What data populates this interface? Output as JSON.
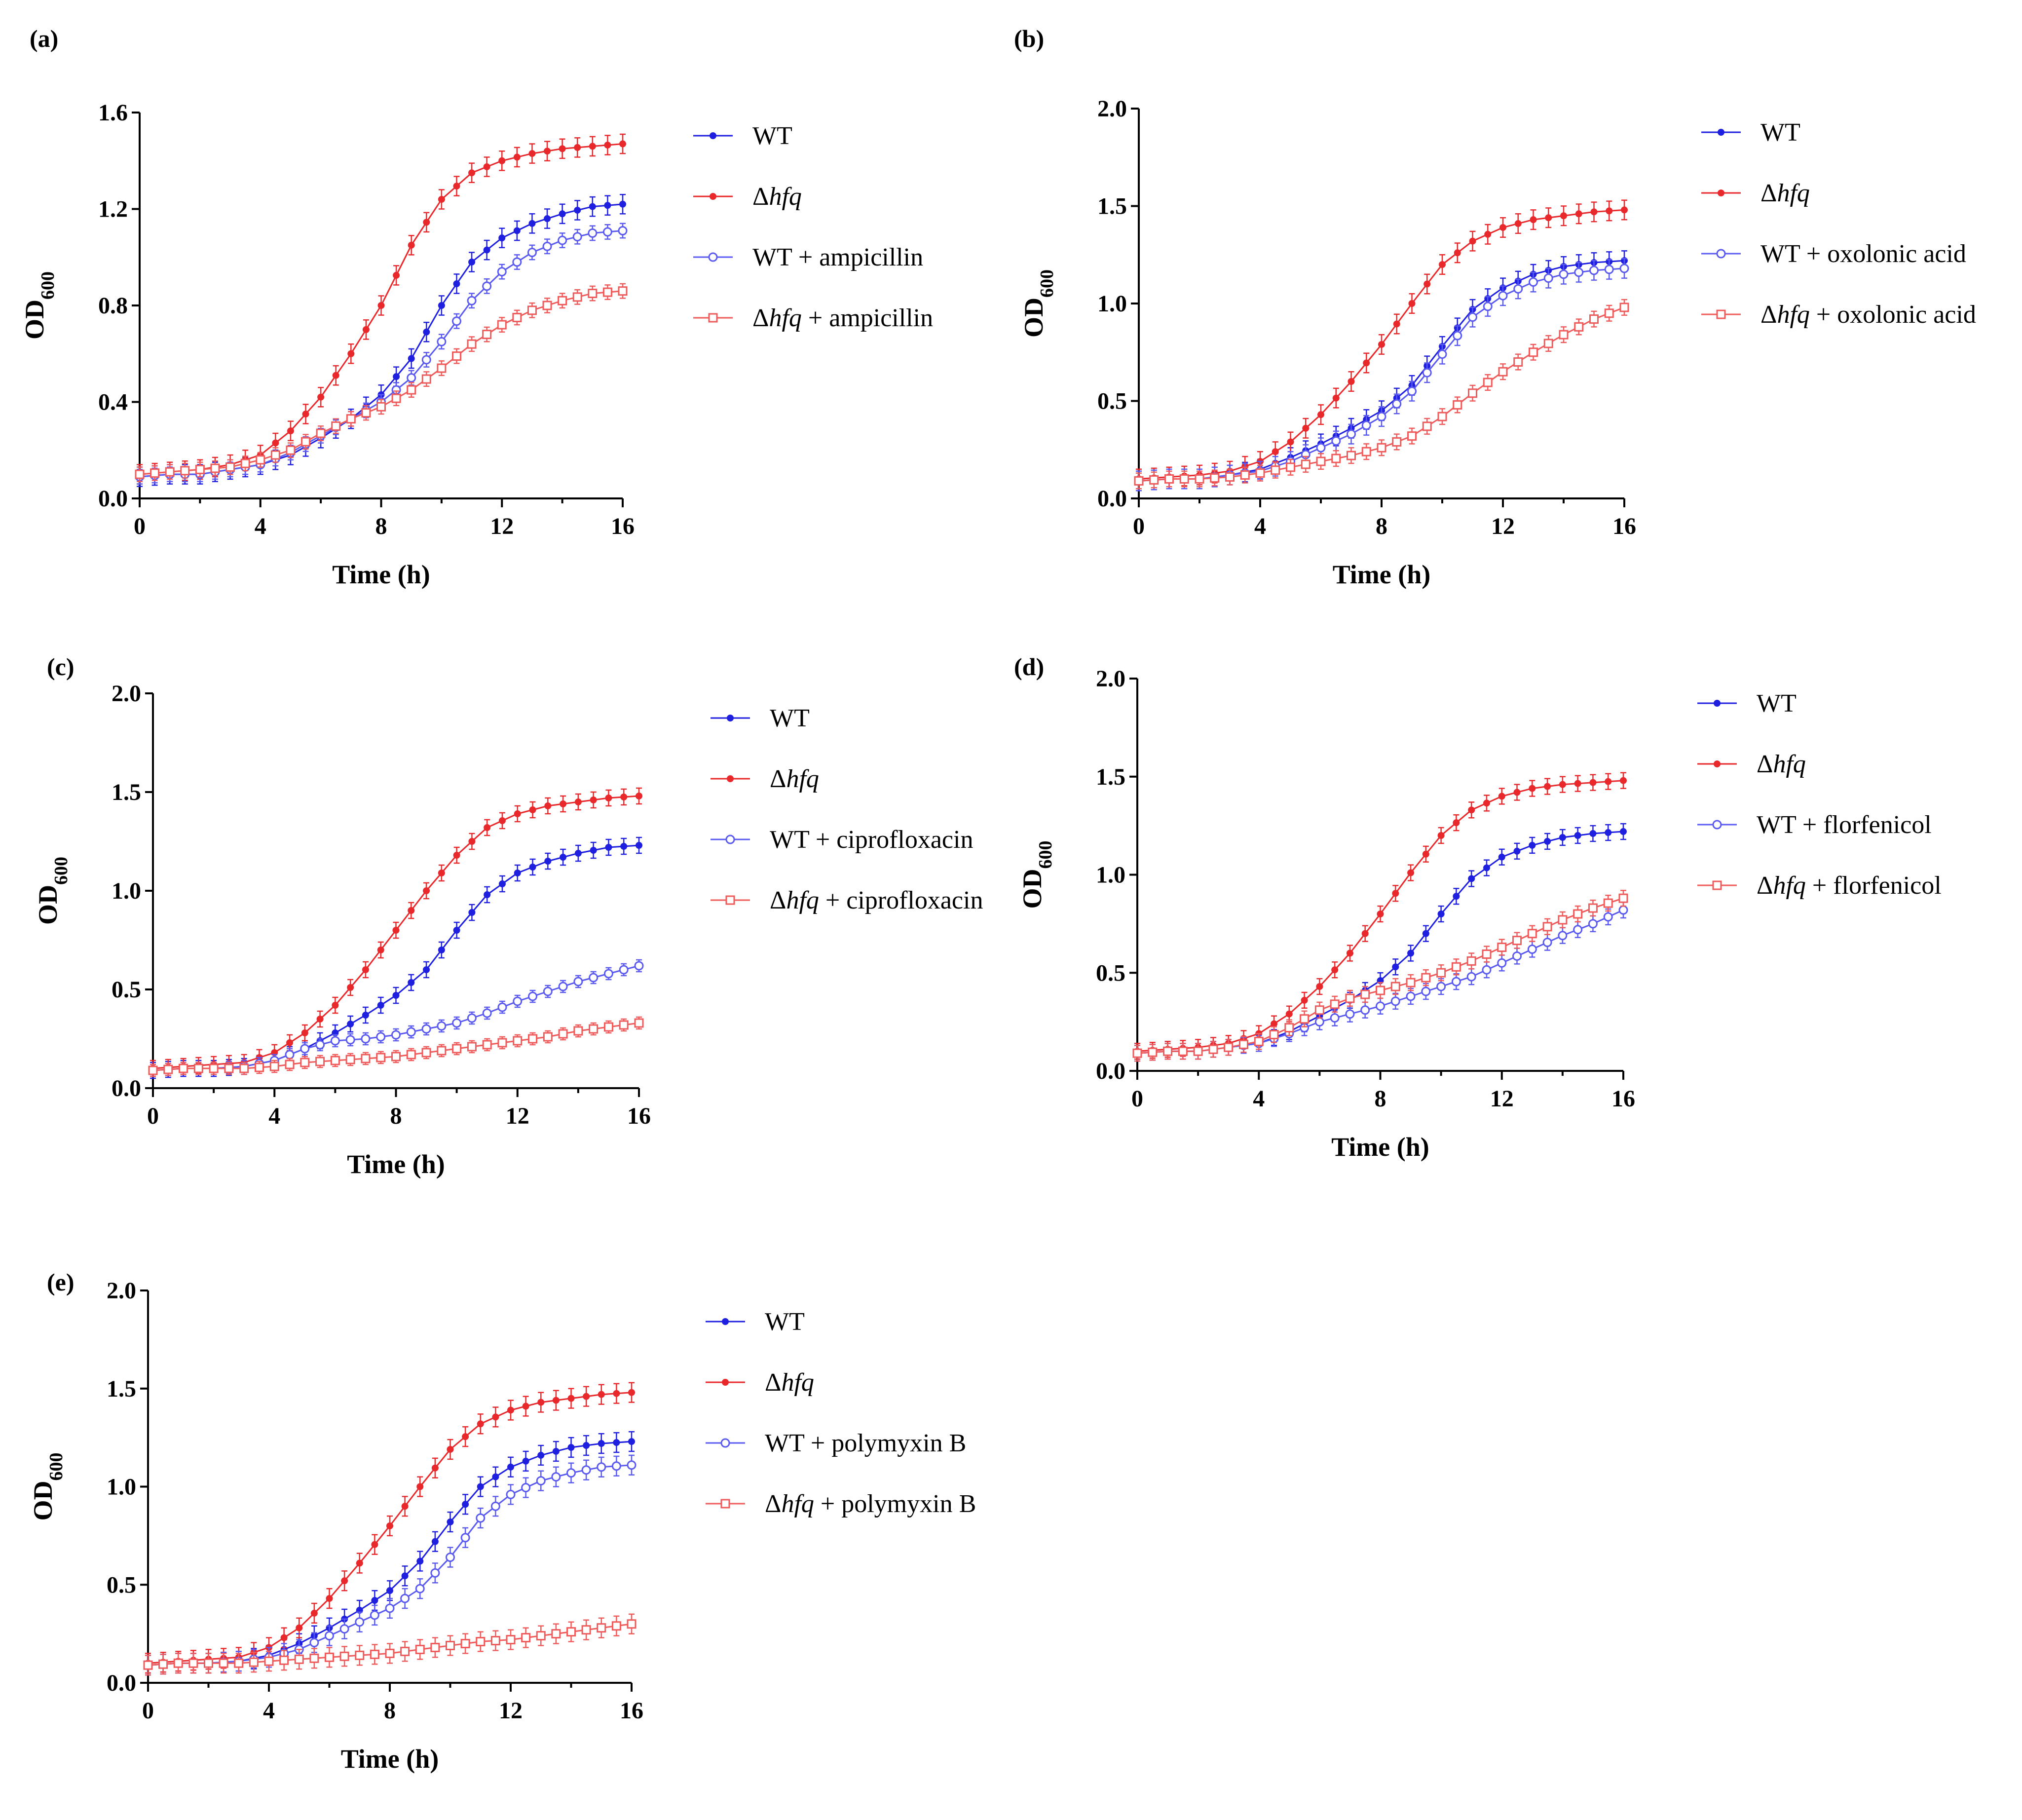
{
  "figure": {
    "background": "#ffffff",
    "colors": {
      "wt": "#1f1fe0",
      "hfq": "#e8282b",
      "wt_treated": "#5a5af0",
      "hfq_treated": "#ef5a5a"
    }
  },
  "chart_data": [
    {
      "panel": "(a)",
      "type": "line",
      "xlabel": "Time (h)",
      "ylabel": "OD",
      "ylabel_sub": "600",
      "xlim": [
        0,
        16
      ],
      "xticks": [
        "0",
        "4",
        "8",
        "12",
        "16"
      ],
      "ylim": [
        0,
        1.6
      ],
      "yticks": [
        "0.0",
        "0.4",
        "0.8",
        "1.2",
        "1.6"
      ],
      "legend_position": "right",
      "series": [
        {
          "name_prefix": "Δ",
          "name_em": "",
          "name": "WT",
          "marker": "filled-dot",
          "color": "#1f1fe0",
          "x": [
            0,
            1,
            2,
            3,
            4,
            5,
            6,
            7,
            8,
            9,
            10,
            11,
            12,
            13,
            14,
            15,
            16
          ],
          "y": [
            0.09,
            0.1,
            0.1,
            0.12,
            0.14,
            0.18,
            0.25,
            0.33,
            0.43,
            0.58,
            0.8,
            0.98,
            1.08,
            1.14,
            1.18,
            1.21,
            1.22
          ],
          "err": 0.04
        },
        {
          "name_prefix": "Δ",
          "name_em": "hfq",
          "name": "",
          "marker": "filled-dot",
          "color": "#e8282b",
          "x": [
            0,
            1,
            2,
            3,
            4,
            5,
            6,
            7,
            8,
            9,
            10,
            11,
            12,
            13,
            14,
            15,
            16
          ],
          "y": [
            0.1,
            0.11,
            0.12,
            0.14,
            0.18,
            0.28,
            0.42,
            0.6,
            0.8,
            1.05,
            1.24,
            1.35,
            1.4,
            1.43,
            1.45,
            1.46,
            1.47
          ],
          "err": 0.04
        },
        {
          "name_prefix": "Δ",
          "name_em": "",
          "name": "WT + ampicillin",
          "marker": "open-circle",
          "color": "#5a5af0",
          "x": [
            0,
            1,
            2,
            3,
            4,
            5,
            6,
            7,
            8,
            9,
            10,
            11,
            12,
            13,
            14,
            15,
            16
          ],
          "y": [
            0.09,
            0.1,
            0.1,
            0.12,
            0.14,
            0.19,
            0.26,
            0.33,
            0.4,
            0.5,
            0.65,
            0.82,
            0.94,
            1.02,
            1.07,
            1.1,
            1.11
          ],
          "err": 0.03
        },
        {
          "name_prefix": "Δ",
          "name_em": "hfq",
          "name": " + ampicillin",
          "marker": "open-square",
          "color": "#ef5a5a",
          "x": [
            0,
            1,
            2,
            3,
            4,
            5,
            6,
            7,
            8,
            9,
            10,
            11,
            12,
            13,
            14,
            15,
            16
          ],
          "y": [
            0.1,
            0.11,
            0.12,
            0.13,
            0.16,
            0.2,
            0.27,
            0.33,
            0.38,
            0.45,
            0.54,
            0.64,
            0.72,
            0.78,
            0.82,
            0.85,
            0.86
          ],
          "err": 0.03
        }
      ]
    },
    {
      "panel": "(b)",
      "type": "line",
      "xlabel": "Time (h)",
      "ylabel": "OD",
      "ylabel_sub": "600",
      "xlim": [
        0,
        16
      ],
      "xticks": [
        "0",
        "4",
        "8",
        "12",
        "16"
      ],
      "ylim": [
        0,
        2.0
      ],
      "yticks": [
        "0.0",
        "0.5",
        "1.0",
        "1.5",
        "2.0"
      ],
      "legend_position": "right",
      "series": [
        {
          "name_prefix": "Δ",
          "name_em": "",
          "name": "WT",
          "marker": "filled-dot",
          "color": "#1f1fe0",
          "x": [
            0,
            1,
            2,
            3,
            4,
            5,
            6,
            7,
            8,
            9,
            10,
            11,
            12,
            13,
            14,
            15,
            16
          ],
          "y": [
            0.09,
            0.1,
            0.1,
            0.12,
            0.15,
            0.21,
            0.28,
            0.36,
            0.45,
            0.58,
            0.78,
            0.97,
            1.08,
            1.15,
            1.19,
            1.21,
            1.22
          ],
          "err": 0.05
        },
        {
          "name_prefix": "Δ",
          "name_em": "hfq",
          "name": "",
          "marker": "filled-dot",
          "color": "#e8282b",
          "x": [
            0,
            1,
            2,
            3,
            4,
            5,
            6,
            7,
            8,
            9,
            10,
            11,
            12,
            13,
            14,
            15,
            16
          ],
          "y": [
            0.1,
            0.11,
            0.12,
            0.14,
            0.19,
            0.29,
            0.43,
            0.6,
            0.79,
            1.0,
            1.2,
            1.32,
            1.39,
            1.43,
            1.45,
            1.47,
            1.48
          ],
          "err": 0.05
        },
        {
          "name_prefix": "Δ",
          "name_em": "",
          "name": "WT + oxolonic acid",
          "marker": "open-circle",
          "color": "#5a5af0",
          "x": [
            0,
            1,
            2,
            3,
            4,
            5,
            6,
            7,
            8,
            9,
            10,
            11,
            12,
            13,
            14,
            15,
            16
          ],
          "y": [
            0.09,
            0.1,
            0.1,
            0.12,
            0.14,
            0.19,
            0.26,
            0.33,
            0.42,
            0.55,
            0.74,
            0.93,
            1.04,
            1.11,
            1.15,
            1.17,
            1.18
          ],
          "err": 0.05
        },
        {
          "name_prefix": "Δ",
          "name_em": "hfq",
          "name": " + oxolonic acid",
          "marker": "open-square",
          "color": "#ef5a5a",
          "x": [
            0,
            1,
            2,
            3,
            4,
            5,
            6,
            7,
            8,
            9,
            10,
            11,
            12,
            13,
            14,
            15,
            16
          ],
          "y": [
            0.09,
            0.1,
            0.1,
            0.11,
            0.13,
            0.16,
            0.19,
            0.22,
            0.26,
            0.32,
            0.42,
            0.54,
            0.65,
            0.75,
            0.84,
            0.92,
            0.98
          ],
          "err": 0.04
        }
      ]
    },
    {
      "panel": "(c)",
      "type": "line",
      "xlabel": "Time (h)",
      "ylabel": "OD",
      "ylabel_sub": "600",
      "xlim": [
        0,
        16
      ],
      "xticks": [
        "0",
        "4",
        "8",
        "12",
        "16"
      ],
      "ylim": [
        0,
        2.0
      ],
      "yticks": [
        "0.0",
        "0.5",
        "1.0",
        "1.5",
        "2.0"
      ],
      "legend_position": "right",
      "series": [
        {
          "name_prefix": "Δ",
          "name_em": "",
          "name": "WT",
          "marker": "filled-dot",
          "color": "#1f1fe0",
          "x": [
            0,
            1,
            2,
            3,
            4,
            5,
            6,
            7,
            8,
            9,
            10,
            11,
            12,
            13,
            14,
            15,
            16
          ],
          "y": [
            0.09,
            0.1,
            0.1,
            0.11,
            0.14,
            0.2,
            0.28,
            0.37,
            0.47,
            0.6,
            0.8,
            0.98,
            1.09,
            1.15,
            1.19,
            1.22,
            1.23
          ],
          "err": 0.04
        },
        {
          "name_prefix": "Δ",
          "name_em": "hfq",
          "name": "",
          "marker": "filled-dot",
          "color": "#e8282b",
          "x": [
            0,
            1,
            2,
            3,
            4,
            5,
            6,
            7,
            8,
            9,
            10,
            11,
            12,
            13,
            14,
            15,
            16
          ],
          "y": [
            0.1,
            0.11,
            0.12,
            0.13,
            0.18,
            0.28,
            0.42,
            0.6,
            0.8,
            1.0,
            1.18,
            1.32,
            1.39,
            1.43,
            1.45,
            1.47,
            1.48
          ],
          "err": 0.04
        },
        {
          "name_prefix": "Δ",
          "name_em": "",
          "name": "WT + ciprofloxacin",
          "marker": "open-circle",
          "color": "#5a5af0",
          "x": [
            0,
            1,
            2,
            3,
            4,
            5,
            6,
            7,
            8,
            9,
            10,
            11,
            12,
            13,
            14,
            15,
            16
          ],
          "y": [
            0.09,
            0.1,
            0.1,
            0.11,
            0.14,
            0.2,
            0.24,
            0.25,
            0.27,
            0.3,
            0.33,
            0.38,
            0.44,
            0.49,
            0.54,
            0.58,
            0.62
          ],
          "err": 0.03
        },
        {
          "name_prefix": "Δ",
          "name_em": "hfq",
          "name": " + ciprofloxacin",
          "marker": "open-square",
          "color": "#ef5a5a",
          "x": [
            0,
            1,
            2,
            3,
            4,
            5,
            6,
            7,
            8,
            9,
            10,
            11,
            12,
            13,
            14,
            15,
            16
          ],
          "y": [
            0.09,
            0.1,
            0.1,
            0.1,
            0.11,
            0.13,
            0.14,
            0.15,
            0.16,
            0.18,
            0.2,
            0.22,
            0.24,
            0.26,
            0.29,
            0.31,
            0.33
          ],
          "err": 0.03
        }
      ]
    },
    {
      "panel": "(d)",
      "type": "line",
      "xlabel": "Time (h)",
      "ylabel": "OD",
      "ylabel_sub": "600",
      "xlim": [
        0,
        16
      ],
      "xticks": [
        "0",
        "4",
        "8",
        "12",
        "16"
      ],
      "ylim": [
        0,
        2.0
      ],
      "yticks": [
        "0.0",
        "0.5",
        "1.0",
        "1.5",
        "2.0"
      ],
      "legend_position": "right",
      "series": [
        {
          "name_prefix": "Δ",
          "name_em": "",
          "name": "WT",
          "marker": "filled-dot",
          "color": "#1f1fe0",
          "x": [
            0,
            1,
            2,
            3,
            4,
            5,
            6,
            7,
            8,
            9,
            10,
            11,
            12,
            13,
            14,
            15,
            16
          ],
          "y": [
            0.09,
            0.1,
            0.1,
            0.12,
            0.14,
            0.2,
            0.28,
            0.36,
            0.46,
            0.6,
            0.8,
            0.98,
            1.09,
            1.15,
            1.19,
            1.21,
            1.22
          ],
          "err": 0.04
        },
        {
          "name_prefix": "Δ",
          "name_em": "hfq",
          "name": "",
          "marker": "filled-dot",
          "color": "#e8282b",
          "x": [
            0,
            1,
            2,
            3,
            4,
            5,
            6,
            7,
            8,
            9,
            10,
            11,
            12,
            13,
            14,
            15,
            16
          ],
          "y": [
            0.1,
            0.11,
            0.12,
            0.14,
            0.19,
            0.29,
            0.43,
            0.6,
            0.8,
            1.01,
            1.2,
            1.33,
            1.4,
            1.44,
            1.46,
            1.47,
            1.48
          ],
          "err": 0.04
        },
        {
          "name_prefix": "Δ",
          "name_em": "",
          "name": "WT + florfenicol",
          "marker": "open-circle",
          "color": "#5a5af0",
          "x": [
            0,
            1,
            2,
            3,
            4,
            5,
            6,
            7,
            8,
            9,
            10,
            11,
            12,
            13,
            14,
            15,
            16
          ],
          "y": [
            0.09,
            0.1,
            0.1,
            0.12,
            0.14,
            0.19,
            0.25,
            0.29,
            0.33,
            0.38,
            0.43,
            0.48,
            0.55,
            0.62,
            0.69,
            0.75,
            0.82
          ],
          "err": 0.04
        },
        {
          "name_prefix": "Δ",
          "name_em": "hfq",
          "name": " + florfenicol",
          "marker": "open-square",
          "color": "#ef5a5a",
          "x": [
            0,
            1,
            2,
            3,
            4,
            5,
            6,
            7,
            8,
            9,
            10,
            11,
            12,
            13,
            14,
            15,
            16
          ],
          "y": [
            0.09,
            0.1,
            0.1,
            0.12,
            0.15,
            0.22,
            0.31,
            0.37,
            0.41,
            0.45,
            0.5,
            0.56,
            0.63,
            0.7,
            0.77,
            0.83,
            0.88
          ],
          "err": 0.04
        }
      ]
    },
    {
      "panel": "(e)",
      "type": "line",
      "xlabel": "Time (h)",
      "ylabel": "OD",
      "ylabel_sub": "600",
      "xlim": [
        0,
        16
      ],
      "xticks": [
        "0",
        "4",
        "8",
        "12",
        "16"
      ],
      "ylim": [
        0,
        2.0
      ],
      "yticks": [
        "0.0",
        "0.5",
        "1.0",
        "1.5",
        "2.0"
      ],
      "legend_position": "right",
      "series": [
        {
          "name_prefix": "Δ",
          "name_em": "",
          "name": "WT",
          "marker": "filled-dot",
          "color": "#1f1fe0",
          "x": [
            0,
            1,
            2,
            3,
            4,
            5,
            6,
            7,
            8,
            9,
            10,
            11,
            12,
            13,
            14,
            15,
            16
          ],
          "y": [
            0.09,
            0.1,
            0.1,
            0.11,
            0.14,
            0.2,
            0.28,
            0.37,
            0.47,
            0.62,
            0.82,
            1.0,
            1.1,
            1.16,
            1.2,
            1.22,
            1.23
          ],
          "err": 0.05
        },
        {
          "name_prefix": "Δ",
          "name_em": "hfq",
          "name": "",
          "marker": "filled-dot",
          "color": "#e8282b",
          "x": [
            0,
            1,
            2,
            3,
            4,
            5,
            6,
            7,
            8,
            9,
            10,
            11,
            12,
            13,
            14,
            15,
            16
          ],
          "y": [
            0.1,
            0.11,
            0.12,
            0.13,
            0.18,
            0.28,
            0.43,
            0.61,
            0.8,
            1.0,
            1.19,
            1.32,
            1.39,
            1.43,
            1.45,
            1.47,
            1.48
          ],
          "err": 0.05
        },
        {
          "name_prefix": "Δ",
          "name_em": "",
          "name": "WT + polymyxin B",
          "marker": "open-circle",
          "color": "#5a5af0",
          "x": [
            0,
            1,
            2,
            3,
            4,
            5,
            6,
            7,
            8,
            9,
            10,
            11,
            12,
            13,
            14,
            15,
            16
          ],
          "y": [
            0.09,
            0.1,
            0.1,
            0.11,
            0.13,
            0.17,
            0.24,
            0.31,
            0.38,
            0.48,
            0.64,
            0.84,
            0.96,
            1.03,
            1.07,
            1.1,
            1.11
          ],
          "err": 0.05
        },
        {
          "name_prefix": "Δ",
          "name_em": "hfq",
          "name": " + polymyxin B",
          "marker": "open-square",
          "color": "#ef5a5a",
          "x": [
            0,
            1,
            2,
            3,
            4,
            5,
            6,
            7,
            8,
            9,
            10,
            11,
            12,
            13,
            14,
            15,
            16
          ],
          "y": [
            0.09,
            0.1,
            0.1,
            0.1,
            0.11,
            0.12,
            0.13,
            0.14,
            0.15,
            0.17,
            0.19,
            0.21,
            0.22,
            0.24,
            0.26,
            0.28,
            0.3
          ],
          "err": 0.05
        }
      ]
    }
  ]
}
